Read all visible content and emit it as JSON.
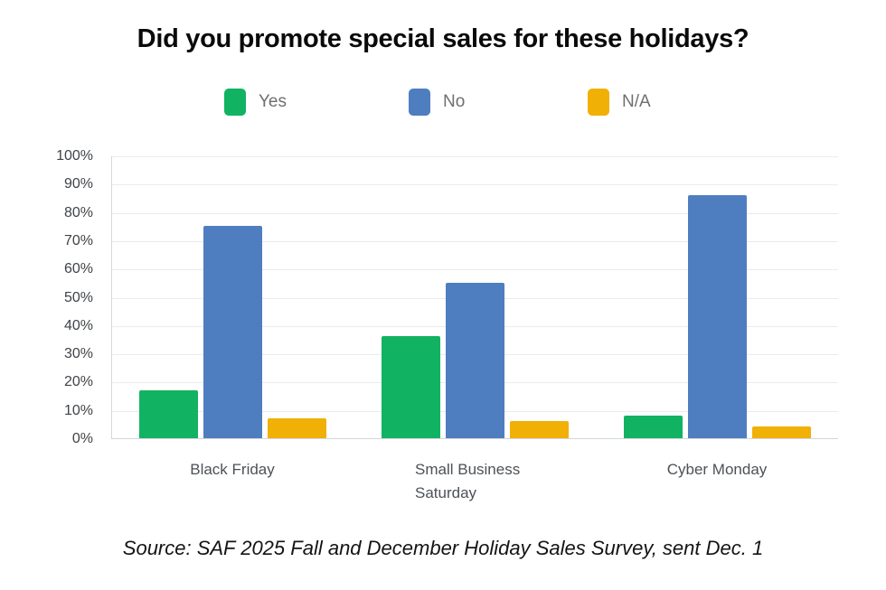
{
  "title": "Did you promote special sales for these holidays?",
  "legend": [
    {
      "label": "Yes",
      "color": "#12b263"
    },
    {
      "label": "No",
      "color": "#4e7ec0"
    },
    {
      "label": "N/A",
      "color": "#f0b005"
    }
  ],
  "source": "Source: SAF 2025 Fall and December Holiday Sales Survey, sent Dec. 1",
  "colors": {
    "yes": "#12b263",
    "no": "#4e7ec0",
    "na": "#f0b005",
    "gridline": "#e9ebed",
    "axis_line": "#d4d7db",
    "legend_text": "#6f6f6f",
    "axis_text": "#4d5156"
  },
  "chart_data": {
    "type": "bar",
    "title": "Did you promote special sales for these holidays?",
    "categories": [
      "Black Friday",
      "Small Business Saturday",
      "Cyber Monday"
    ],
    "series": [
      {
        "name": "Yes",
        "color": "#12b263",
        "values": [
          17,
          36,
          8
        ]
      },
      {
        "name": "No",
        "color": "#4e7ec0",
        "values": [
          75,
          55,
          86
        ]
      },
      {
        "name": "N/A",
        "color": "#f0b005",
        "values": [
          7,
          6,
          4
        ]
      }
    ],
    "xlabel": "",
    "ylabel": "",
    "ylim": [
      0,
      100
    ],
    "ytick_step": 10,
    "ytick_format": "percent",
    "grid": true,
    "legend_position": "top",
    "annotation": "Source: SAF 2025 Fall and December Holiday Sales Survey, sent Dec. 1"
  }
}
